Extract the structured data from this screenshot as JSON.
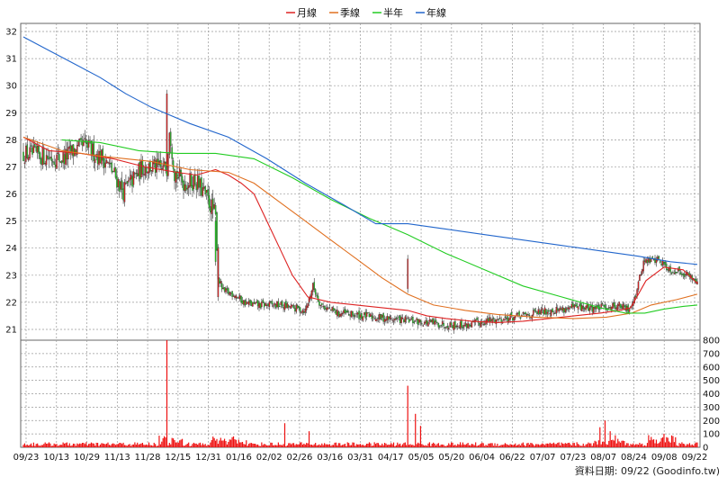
{
  "chart_data": {
    "type": "candlestick",
    "legend": [
      {
        "name": "月線",
        "color": "#dd2222"
      },
      {
        "name": "季線",
        "color": "#e07020"
      },
      {
        "name": "半年",
        "color": "#22cc22"
      },
      {
        "name": "年線",
        "color": "#2266cc"
      }
    ],
    "legend_position": "top-center",
    "price_axis": {
      "min": 20.6,
      "max": 32.3,
      "ticks": [
        21,
        22,
        23,
        24,
        25,
        26,
        27,
        28,
        29,
        30,
        31,
        32
      ]
    },
    "volume_axis": {
      "min": 0,
      "max": 800,
      "ticks": [
        0,
        100,
        200,
        300,
        400,
        500,
        600,
        700,
        800
      ]
    },
    "x_axis_labels": [
      "09/23",
      "10/13",
      "10/29",
      "11/13",
      "11/28",
      "12/15",
      "12/31",
      "01/16",
      "02/02",
      "02/26",
      "03/16",
      "03/31",
      "04/17",
      "05/05",
      "05/20",
      "06/04",
      "06/22",
      "07/07",
      "07/23",
      "08/07",
      "08/24",
      "09/08",
      "09/22"
    ],
    "grid": true,
    "up_color": "#dd2222",
    "down_color": "#22cc22",
    "credit": "資料日期: 09/22  (Goodinfo.tw)",
    "series": [
      {
        "name": "月線",
        "points": [
          [
            0,
            28.1
          ],
          [
            20,
            27.6
          ],
          [
            45,
            27.5
          ],
          [
            70,
            27.3
          ],
          [
            95,
            27.0
          ],
          [
            120,
            26.8
          ],
          [
            135,
            26.7
          ],
          [
            150,
            26.9
          ],
          [
            160,
            26.7
          ],
          [
            170,
            26.4
          ],
          [
            180,
            26.0
          ],
          [
            190,
            25.0
          ],
          [
            200,
            24.0
          ],
          [
            210,
            23.0
          ],
          [
            222,
            22.2
          ],
          [
            240,
            22.0
          ],
          [
            260,
            21.9
          ],
          [
            280,
            21.8
          ],
          [
            300,
            21.7
          ],
          [
            315,
            21.5
          ],
          [
            330,
            21.4
          ],
          [
            350,
            21.3
          ],
          [
            370,
            21.25
          ],
          [
            390,
            21.3
          ],
          [
            410,
            21.4
          ],
          [
            430,
            21.5
          ],
          [
            450,
            21.6
          ],
          [
            465,
            21.7
          ],
          [
            474,
            21.8
          ],
          [
            486,
            22.8
          ],
          [
            500,
            23.3
          ],
          [
            515,
            23.2
          ],
          [
            526,
            22.7
          ]
        ]
      },
      {
        "name": "季線",
        "points": [
          [
            0,
            28.1
          ],
          [
            30,
            27.6
          ],
          [
            60,
            27.4
          ],
          [
            100,
            27.2
          ],
          [
            130,
            26.9
          ],
          [
            160,
            26.8
          ],
          [
            180,
            26.4
          ],
          [
            200,
            25.7
          ],
          [
            220,
            25.0
          ],
          [
            240,
            24.3
          ],
          [
            260,
            23.6
          ],
          [
            280,
            22.9
          ],
          [
            300,
            22.3
          ],
          [
            320,
            21.9
          ],
          [
            345,
            21.7
          ],
          [
            370,
            21.55
          ],
          [
            400,
            21.45
          ],
          [
            430,
            21.4
          ],
          [
            455,
            21.45
          ],
          [
            475,
            21.6
          ],
          [
            490,
            21.9
          ],
          [
            510,
            22.1
          ],
          [
            526,
            22.3
          ]
        ]
      },
      {
        "name": "半年",
        "points": [
          [
            30,
            28.0
          ],
          [
            60,
            27.9
          ],
          [
            90,
            27.6
          ],
          [
            120,
            27.5
          ],
          [
            150,
            27.5
          ],
          [
            180,
            27.3
          ],
          [
            210,
            26.6
          ],
          [
            240,
            25.8
          ],
          [
            270,
            25.1
          ],
          [
            300,
            24.5
          ],
          [
            330,
            23.8
          ],
          [
            360,
            23.2
          ],
          [
            390,
            22.6
          ],
          [
            420,
            22.2
          ],
          [
            450,
            21.8
          ],
          [
            470,
            21.6
          ],
          [
            485,
            21.6
          ],
          [
            500,
            21.75
          ],
          [
            515,
            21.85
          ],
          [
            526,
            21.9
          ]
        ]
      },
      {
        "name": "年線",
        "points": [
          [
            0,
            31.8
          ],
          [
            20,
            31.3
          ],
          [
            40,
            30.8
          ],
          [
            60,
            30.3
          ],
          [
            80,
            29.7
          ],
          [
            100,
            29.2
          ],
          [
            130,
            28.6
          ],
          [
            160,
            28.1
          ],
          [
            190,
            27.3
          ],
          [
            220,
            26.4
          ],
          [
            250,
            25.6
          ],
          [
            275,
            24.9
          ],
          [
            300,
            24.9
          ],
          [
            330,
            24.7
          ],
          [
            360,
            24.5
          ],
          [
            390,
            24.3
          ],
          [
            420,
            24.1
          ],
          [
            450,
            23.9
          ],
          [
            480,
            23.7
          ],
          [
            505,
            23.5
          ],
          [
            526,
            23.4
          ]
        ]
      }
    ],
    "volume_spikes": [
      [
        112,
        820
      ],
      [
        204,
        180
      ],
      [
        223,
        120
      ],
      [
        300,
        460
      ],
      [
        306,
        250
      ],
      [
        310,
        160
      ],
      [
        450,
        150
      ],
      [
        454,
        200
      ],
      [
        458,
        120
      ],
      [
        462,
        90
      ]
    ]
  }
}
